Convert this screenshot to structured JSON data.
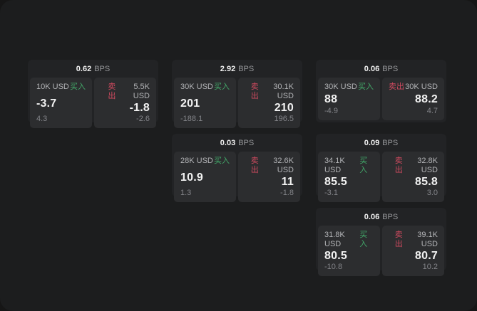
{
  "colors": {
    "buy": "#42a869",
    "sell": "#cf4a5f",
    "window-bg": "#1c1d1e",
    "card-bg": "#222325",
    "panel-bg": "#2c2d2f"
  },
  "labels": {
    "buy": "买入",
    "sell": "卖出",
    "bps_unit": "BPS"
  },
  "cards": [
    {
      "bps": "0.62",
      "buy": {
        "amount": "10K USD",
        "value": "-3.7",
        "delta": "4.3"
      },
      "sell": {
        "amount": "5.5K USD",
        "value": "-1.8",
        "delta": "-2.6"
      }
    },
    {
      "bps": "2.92",
      "buy": {
        "amount": "30K USD",
        "value": "201",
        "delta": "-188.1"
      },
      "sell": {
        "amount": "30.1K USD",
        "value": "210",
        "delta": "196.5"
      }
    },
    {
      "bps": "0.06",
      "buy": {
        "amount": "30K USD",
        "value": "88",
        "delta": "-4.9"
      },
      "sell": {
        "amount": "30K USD",
        "value": "88.2",
        "delta": "4.7"
      }
    },
    {
      "bps": "0.03",
      "buy": {
        "amount": "28K USD",
        "value": "10.9",
        "delta": "1.3"
      },
      "sell": {
        "amount": "32.6K USD",
        "value": "11",
        "delta": "-1.8"
      }
    },
    {
      "bps": "0.09",
      "buy": {
        "amount": "34.1K USD",
        "value": "85.5",
        "delta": "-3.1"
      },
      "sell": {
        "amount": "32.8K USD",
        "value": "85.8",
        "delta": "3.0"
      }
    },
    {
      "bps": "0.06",
      "buy": {
        "amount": "31.8K USD",
        "value": "80.5",
        "delta": "-10.8"
      },
      "sell": {
        "amount": "39.1K USD",
        "value": "80.7",
        "delta": "10.2"
      }
    }
  ]
}
